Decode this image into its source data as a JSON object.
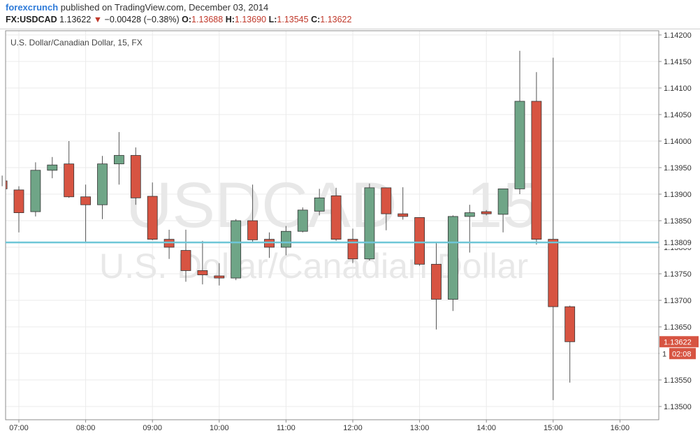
{
  "header": {
    "brand": "forexcrunch",
    "published": "published on TradingView.com, December 03, 2014",
    "symbol": "FX:USDCAD",
    "last": "1.13622",
    "change": "−0.00428 (−0.38%)",
    "open_label": "O:",
    "open": "1.13688",
    "high_label": "H:",
    "high": "1.13690",
    "low_label": "L:",
    "low": "1.13545",
    "close_label": "C:",
    "close": "1.13622"
  },
  "colors": {
    "up": "#6fa587",
    "down": "#d75442",
    "price_line": "#6ec6d7",
    "last_tag": "#d75442",
    "countdown_tag": "#d75442"
  },
  "chart_data": {
    "type": "candlestick",
    "title": "U.S. Dollar/Canadian Dollar, 15, FX",
    "watermark_symbol": "USDCAD",
    "watermark_interval": "15",
    "watermark_name": "U.S. Dollar/Canadian Dollar",
    "ylim": [
      1.1348,
      1.1422
    ],
    "y_ticks": [
      "1.14200",
      "1.14150",
      "1.14100",
      "1.14050",
      "1.14000",
      "1.13950",
      "1.13900",
      "1.13850",
      "1.13800",
      "1.13750",
      "1.13700",
      "1.13650",
      "1.13600",
      "1.13550",
      "1.13500"
    ],
    "x_ticks": [
      {
        "label": "07:00",
        "t": 0
      },
      {
        "label": "08:00",
        "t": 4
      },
      {
        "label": "09:00",
        "t": 8
      },
      {
        "label": "10:00",
        "t": 12
      },
      {
        "label": "11:00",
        "t": 16
      },
      {
        "label": "12:00",
        "t": 20
      },
      {
        "label": "13:00",
        "t": 24
      },
      {
        "label": "14:00",
        "t": 28
      },
      {
        "label": "15:00",
        "t": 32
      },
      {
        "label": "16:00",
        "t": 36
      }
    ],
    "candles": [
      {
        "t": -1,
        "o": 1.13925,
        "h": 1.13935,
        "l": 1.13915,
        "c": 1.1391
      },
      {
        "t": 0,
        "o": 1.13908,
        "h": 1.13915,
        "l": 1.13828,
        "c": 1.13865
      },
      {
        "t": 1,
        "o": 1.13867,
        "h": 1.1396,
        "l": 1.13858,
        "c": 1.13945
      },
      {
        "t": 2,
        "o": 1.13945,
        "h": 1.1397,
        "l": 1.1393,
        "c": 1.13955
      },
      {
        "t": 3,
        "o": 1.13957,
        "h": 1.14,
        "l": 1.13893,
        "c": 1.13895
      },
      {
        "t": 4,
        "o": 1.13895,
        "h": 1.13918,
        "l": 1.1381,
        "c": 1.1388
      },
      {
        "t": 5,
        "o": 1.1388,
        "h": 1.13972,
        "l": 1.13853,
        "c": 1.13957
      },
      {
        "t": 6,
        "o": 1.13957,
        "h": 1.14017,
        "l": 1.13918,
        "c": 1.13973
      },
      {
        "t": 7,
        "o": 1.13973,
        "h": 1.13988,
        "l": 1.1388,
        "c": 1.13893
      },
      {
        "t": 8,
        "o": 1.13896,
        "h": 1.13922,
        "l": 1.13813,
        "c": 1.13815
      },
      {
        "t": 9,
        "o": 1.13815,
        "h": 1.13833,
        "l": 1.13778,
        "c": 1.138
      },
      {
        "t": 10,
        "o": 1.13794,
        "h": 1.13833,
        "l": 1.13735,
        "c": 1.13756
      },
      {
        "t": 11,
        "o": 1.13756,
        "h": 1.13812,
        "l": 1.1373,
        "c": 1.13748
      },
      {
        "t": 12,
        "o": 1.13746,
        "h": 1.1377,
        "l": 1.13728,
        "c": 1.13742
      },
      {
        "t": 13,
        "o": 1.13742,
        "h": 1.13853,
        "l": 1.13738,
        "c": 1.1385
      },
      {
        "t": 14,
        "o": 1.1385,
        "h": 1.13918,
        "l": 1.1381,
        "c": 1.13814
      },
      {
        "t": 15,
        "o": 1.13815,
        "h": 1.13828,
        "l": 1.1378,
        "c": 1.138
      },
      {
        "t": 16,
        "o": 1.138,
        "h": 1.1384,
        "l": 1.13785,
        "c": 1.1383
      },
      {
        "t": 17,
        "o": 1.1383,
        "h": 1.13875,
        "l": 1.13828,
        "c": 1.1387
      },
      {
        "t": 18,
        "o": 1.13868,
        "h": 1.1391,
        "l": 1.1386,
        "c": 1.13893
      },
      {
        "t": 19,
        "o": 1.13897,
        "h": 1.13912,
        "l": 1.13812,
        "c": 1.13815
      },
      {
        "t": 20,
        "o": 1.13815,
        "h": 1.13835,
        "l": 1.1377,
        "c": 1.13778
      },
      {
        "t": 21,
        "o": 1.13778,
        "h": 1.1392,
        "l": 1.13775,
        "c": 1.13912
      },
      {
        "t": 22,
        "o": 1.13912,
        "h": 1.13912,
        "l": 1.13832,
        "c": 1.13863
      },
      {
        "t": 23,
        "o": 1.13863,
        "h": 1.13913,
        "l": 1.13852,
        "c": 1.13858
      },
      {
        "t": 24,
        "o": 1.13856,
        "h": 1.13855,
        "l": 1.13765,
        "c": 1.13768
      },
      {
        "t": 25,
        "o": 1.13768,
        "h": 1.13808,
        "l": 1.13645,
        "c": 1.13702
      },
      {
        "t": 26,
        "o": 1.13702,
        "h": 1.1386,
        "l": 1.1368,
        "c": 1.13858
      },
      {
        "t": 27,
        "o": 1.13858,
        "h": 1.1388,
        "l": 1.1379,
        "c": 1.13865
      },
      {
        "t": 28,
        "o": 1.13867,
        "h": 1.1387,
        "l": 1.1386,
        "c": 1.13863
      },
      {
        "t": 29,
        "o": 1.13862,
        "h": 1.1391,
        "l": 1.13828,
        "c": 1.1391
      },
      {
        "t": 30,
        "o": 1.1391,
        "h": 1.1417,
        "l": 1.139,
        "c": 1.14075
      },
      {
        "t": 31,
        "o": 1.14075,
        "h": 1.1413,
        "l": 1.13805,
        "c": 1.13815
      },
      {
        "t": 32,
        "o": 1.13815,
        "h": 1.14157,
        "l": 1.13512,
        "c": 1.13688
      },
      {
        "t": 33,
        "o": 1.13688,
        "h": 1.1369,
        "l": 1.13545,
        "c": 1.13622
      }
    ],
    "price_line": {
      "value": 1.13809,
      "label": "1.13809"
    },
    "last_price": {
      "value": 1.13622,
      "label": "1.13622"
    },
    "countdown": {
      "label": "02:08",
      "prefix": "1"
    }
  }
}
